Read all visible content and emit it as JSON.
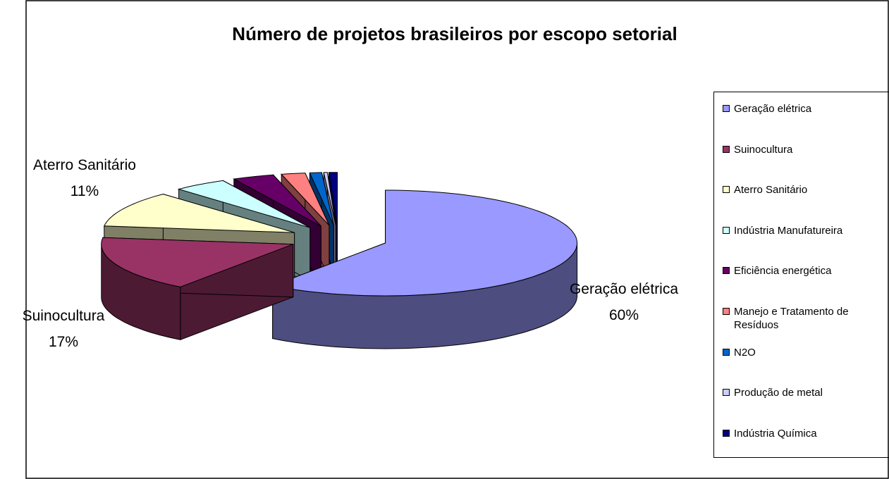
{
  "chart_data": {
    "type": "pie3d",
    "title": "Número de projetos brasileiros por escopo setorial",
    "categories": [
      "Geração elétrica",
      "Suinocultura",
      "Aterro Sanitário",
      "Indústria Manufatureira",
      "Eficiência energética",
      "Manejo e Tratamento de Resíduos",
      "N2O",
      "Produção de metal",
      "Indústria Química"
    ],
    "values": [
      60,
      17,
      11,
      4.5,
      3.5,
      2,
      1,
      0.3,
      0.7
    ],
    "value_labels": [
      "60%",
      "17%",
      "11%",
      null,
      null,
      null,
      null,
      null,
      null
    ],
    "colors": [
      "#9999ff",
      "#993366",
      "#ffffcc",
      "#ccffff",
      "#660066",
      "#ff8080",
      "#0066cc",
      "#ccccff",
      "#000080"
    ],
    "legend": "right"
  }
}
